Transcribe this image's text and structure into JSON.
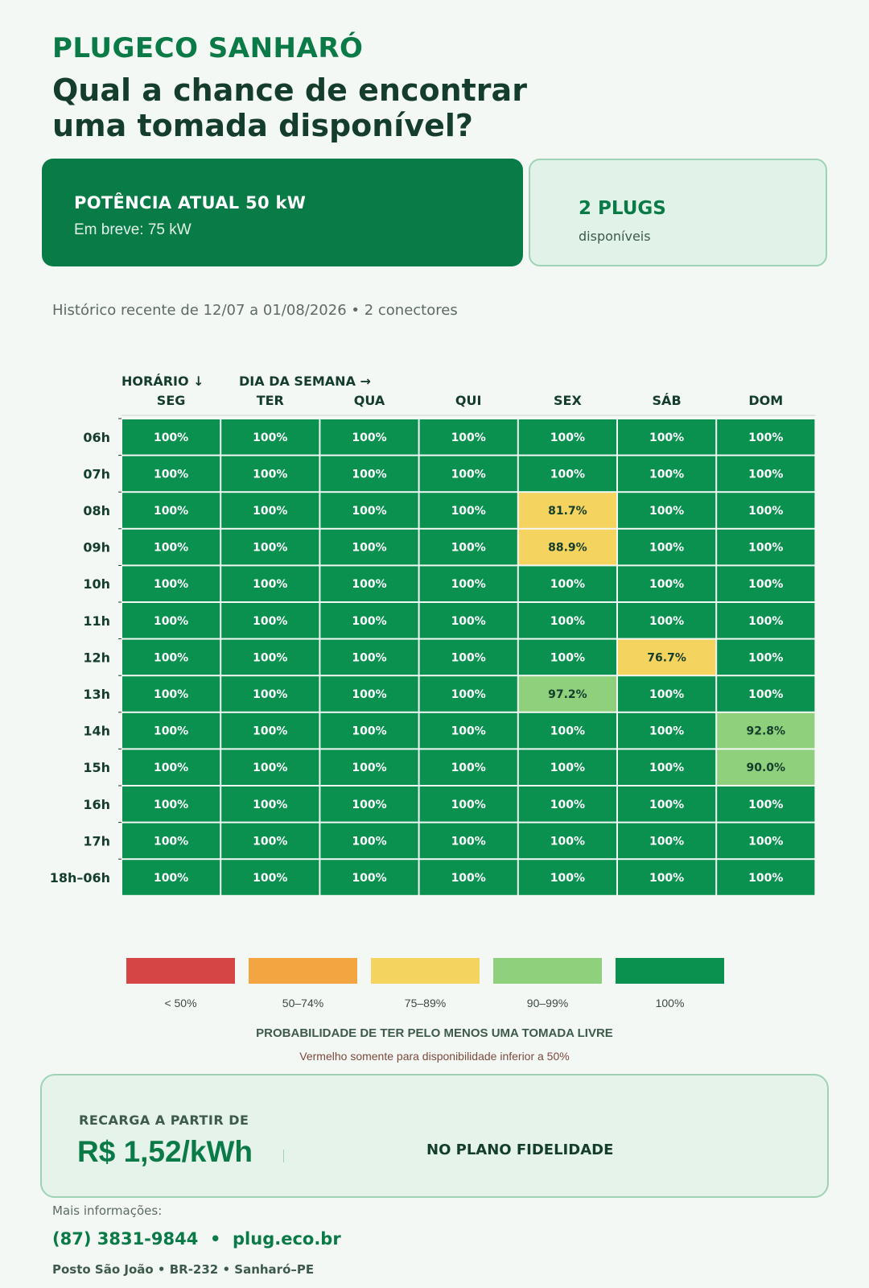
{
  "brand": "PLUGECO SANHARÓ",
  "headline_line1": "Qual a chance de encontrar",
  "headline_line2": "uma tomada disponível?",
  "power_card": {
    "title": "POTÊNCIA ATUAL 50 kW",
    "subtitle": "Em breve: 75 kW"
  },
  "plugs_card": {
    "title": "2 PLUGS",
    "subtitle": "disponíveis"
  },
  "history_text": "Histórico recente de 12/07 a 01/08/2026 • 2 conectores",
  "chart_data": {
    "type": "heatmap",
    "row_axis_label": "HORÁRIO ↓",
    "col_axis_label": "DIA DA SEMANA →",
    "columns": [
      "SEG",
      "TER",
      "QUA",
      "QUI",
      "SEX",
      "SÁB",
      "DOM"
    ],
    "rows": [
      "06h",
      "07h",
      "08h",
      "09h",
      "10h",
      "11h",
      "12h",
      "13h",
      "14h",
      "15h",
      "16h",
      "17h",
      "18h–06h"
    ],
    "values": [
      [
        100,
        100,
        100,
        100,
        100,
        100,
        100
      ],
      [
        100,
        100,
        100,
        100,
        100,
        100,
        100
      ],
      [
        100,
        100,
        100,
        100,
        81.7,
        100,
        100
      ],
      [
        100,
        100,
        100,
        100,
        88.9,
        100,
        100
      ],
      [
        100,
        100,
        100,
        100,
        100,
        100,
        100
      ],
      [
        100,
        100,
        100,
        100,
        100,
        100,
        100
      ],
      [
        100,
        100,
        100,
        100,
        100,
        76.7,
        100
      ],
      [
        100,
        100,
        100,
        100,
        97.2,
        100,
        100
      ],
      [
        100,
        100,
        100,
        100,
        100,
        100,
        92.8
      ],
      [
        100,
        100,
        100,
        100,
        100,
        100,
        90.0
      ],
      [
        100,
        100,
        100,
        100,
        100,
        100,
        100
      ],
      [
        100,
        100,
        100,
        100,
        100,
        100,
        100
      ],
      [
        100,
        100,
        100,
        100,
        100,
        100,
        100
      ]
    ],
    "value_format": {
      "full": "100%",
      "decimals": 1,
      "suffix": "%"
    },
    "legend": [
      {
        "label": "< 50%",
        "color": "#d64545",
        "min": 0,
        "max": 50
      },
      {
        "label": "50–74%",
        "color": "#f2a541",
        "min": 50,
        "max": 75
      },
      {
        "label": "75–89%",
        "color": "#f4d35e",
        "min": 75,
        "max": 90
      },
      {
        "label": "90–99%",
        "color": "#8ed07c",
        "min": 90,
        "max": 100
      },
      {
        "label": "100%",
        "color": "#0a9150",
        "min": 100,
        "max": 101
      }
    ]
  },
  "legend_caption": "PROBABILIDADE DE TER PELO MENOS UMA TOMADA LIVRE",
  "legend_note": "Vermelho somente para disponibilidade inferior a 50%",
  "price_card": {
    "pre": "RECARGA A PARTIR DE",
    "price": "R$ 1,52/kWh",
    "plan": "NO PLANO FIDELIDADE"
  },
  "more_info": "Mais informações:",
  "contact": "(87) 3831-9844  •  plug.eco.br",
  "address": "Posto São João • BR-232 • Sanharó–PE"
}
